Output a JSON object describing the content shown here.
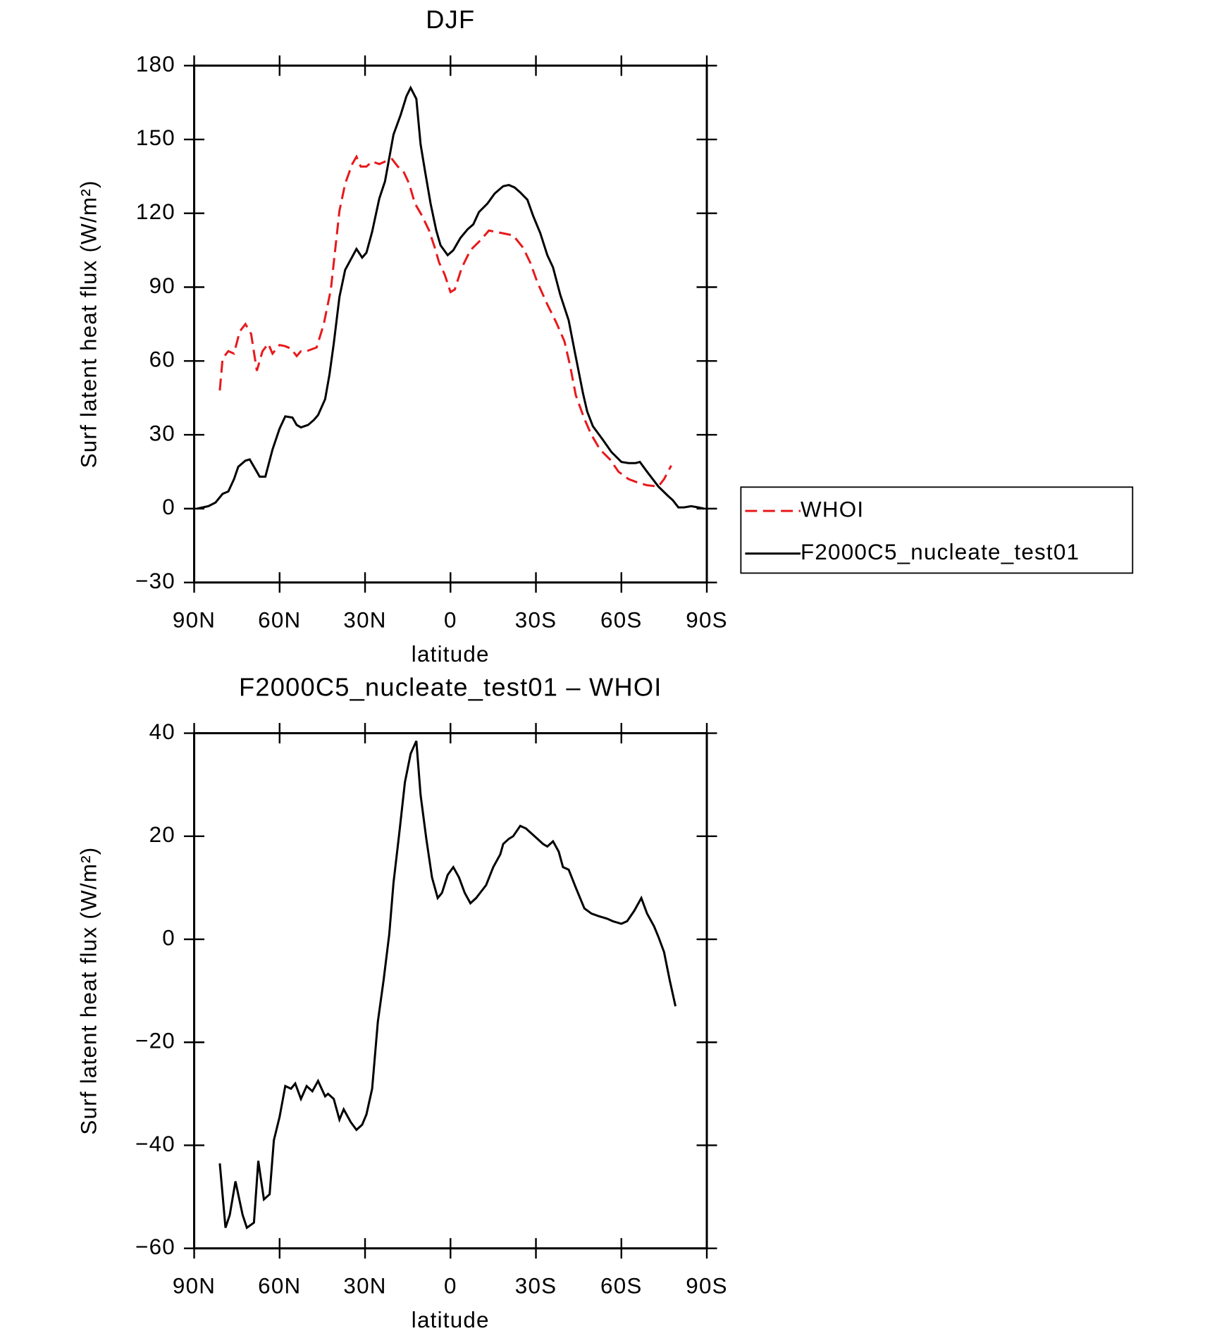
{
  "chart_data": [
    {
      "type": "line",
      "title": "DJF",
      "x_label": "latitude",
      "y_label": "Surf latent heat flux (W/m²)",
      "xlim": [
        90,
        -90
      ],
      "xticks": [
        {
          "value": 90,
          "label": "90N"
        },
        {
          "value": 60,
          "label": "60N"
        },
        {
          "value": 30,
          "label": "30N"
        },
        0,
        {
          "value": -30,
          "label": "30S"
        },
        {
          "value": -60,
          "label": "60S"
        },
        {
          "value": -90,
          "label": "90S"
        }
      ],
      "ylim": [
        -30,
        180
      ],
      "yticks": [
        {
          "value": -30,
          "label": "−30"
        },
        0,
        30,
        60,
        90,
        120,
        150,
        180
      ],
      "legend": "right",
      "series": [
        {
          "name": "WHOI",
          "color": "#e8191c",
          "dash": true,
          "x": [
            81,
            80,
            78,
            76,
            74,
            72,
            70,
            68,
            66,
            64,
            62.5,
            60,
            58,
            56,
            54,
            52.5,
            50.5,
            47,
            44.5,
            42,
            39,
            37,
            34.5,
            33,
            31.5,
            29.5,
            27.5,
            25,
            23,
            20.5,
            18.5,
            16.5,
            14.5,
            12.5,
            10,
            7.5,
            5.5,
            4,
            2,
            0,
            -1.5,
            -4,
            -7,
            -10.5,
            -13.5,
            -18,
            -22,
            -25.5,
            -28,
            -30.5,
            -34,
            -37,
            -40,
            -42,
            -44,
            -47,
            -49.5,
            -52.5,
            -56,
            -59,
            -62.5,
            -66,
            -69,
            -73,
            -75,
            -77.5
          ],
          "values": [
            48,
            61,
            64,
            63,
            72,
            75,
            71,
            56,
            64,
            67,
            63,
            66.5,
            66,
            65,
            62,
            64,
            64,
            65.5,
            75,
            89,
            121,
            132,
            140,
            143,
            139,
            139,
            141,
            140,
            141,
            142,
            139,
            137,
            132,
            124,
            119,
            113,
            106,
            100,
            95,
            88,
            89,
            98,
            105,
            109,
            113,
            112,
            111,
            106,
            100,
            92,
            83,
            76,
            68,
            58,
            46,
            36.5,
            30,
            24,
            20,
            15,
            12,
            10.5,
            9.5,
            9,
            12,
            17.5
          ]
        },
        {
          "name": "F2000C5_nucleate_test01",
          "color": "#000000",
          "dash": false,
          "x": [
            89,
            85,
            82.5,
            80,
            78,
            76,
            74.5,
            72,
            70.5,
            68.5,
            67,
            65,
            62.5,
            60,
            58,
            55.5,
            54,
            52.5,
            50,
            48,
            46.5,
            44,
            42.5,
            41,
            39,
            37,
            33,
            31,
            29.5,
            27.5,
            25,
            23,
            20,
            17.5,
            15.5,
            14,
            12,
            10.5,
            9,
            7,
            5,
            3.5,
            1,
            -1,
            -3.5,
            -6,
            -8,
            -10,
            -13,
            -15.5,
            -18.5,
            -20.5,
            -22.5,
            -24.5,
            -27,
            -29,
            -31.5,
            -34,
            -36,
            -38.5,
            -41.5,
            -43.5,
            -46.5,
            -48,
            -50,
            -53.5,
            -56.5,
            -60,
            -62.5,
            -65,
            -66.5,
            -69,
            -73,
            -76.5,
            -78,
            -80,
            -82,
            -84.5,
            -87,
            -89
          ],
          "values": [
            0,
            1,
            2.5,
            6,
            7,
            12,
            17,
            19.5,
            20,
            16,
            13,
            13,
            24,
            32.5,
            37.5,
            37,
            34,
            33,
            34,
            36,
            38,
            44.5,
            54.5,
            67,
            86,
            97,
            105.5,
            102,
            104,
            112.5,
            126,
            133,
            152,
            160,
            167.5,
            171,
            166.5,
            148,
            137.5,
            124,
            113,
            107,
            103,
            105,
            110,
            113.5,
            115.5,
            120.5,
            124,
            128,
            131,
            131.5,
            130.5,
            128.5,
            125.5,
            119,
            112,
            103,
            98,
            87,
            76.5,
            64.5,
            47,
            39.5,
            33.5,
            28,
            23,
            19,
            18.5,
            18.5,
            19,
            15,
            9,
            5,
            3.5,
            0.5,
            0.5,
            1,
            0.5,
            0
          ]
        }
      ]
    },
    {
      "type": "line",
      "title": "F2000C5_nucleate_test01 – WHOI",
      "x_label": "latitude",
      "y_label": "Surf latent heat flux (W/m²)",
      "xlim": [
        90,
        -90
      ],
      "xticks": [
        {
          "value": 90,
          "label": "90N"
        },
        {
          "value": 60,
          "label": "60N"
        },
        {
          "value": 30,
          "label": "30N"
        },
        0,
        {
          "value": -30,
          "label": "30S"
        },
        {
          "value": -60,
          "label": "60S"
        },
        {
          "value": -90,
          "label": "90S"
        }
      ],
      "ylim": [
        -60,
        40
      ],
      "yticks": [
        {
          "value": -60,
          "label": "−60"
        },
        {
          "value": -40,
          "label": "−40"
        },
        {
          "value": -20,
          "label": "−20"
        },
        0,
        20,
        40
      ],
      "series": [
        {
          "color": "#000000",
          "dash": false,
          "x": [
            81,
            79,
            77.5,
            75.5,
            73,
            71.5,
            69,
            67.5,
            65.5,
            63.5,
            62,
            60,
            58,
            56,
            54.5,
            52.5,
            50.5,
            48.5,
            46.5,
            44,
            43,
            41,
            39,
            37.5,
            35,
            33,
            31,
            29.5,
            27.5,
            25.5,
            23.5,
            21.5,
            20,
            18,
            16,
            14,
            12,
            10.5,
            8.5,
            6.5,
            4.5,
            3,
            1,
            -1,
            -3,
            -5,
            -7,
            -9,
            -12.5,
            -15,
            -17.5,
            -18.5,
            -20.5,
            -22,
            -24.5,
            -26.5,
            -28.5,
            -30.5,
            -32.5,
            -34,
            -36,
            -38,
            -39.5,
            -41.5,
            -44,
            -47,
            -49.5,
            -52,
            -55,
            -57,
            -60,
            -62,
            -64.5,
            -67,
            -69,
            -71.5,
            -73,
            -75,
            -77,
            -79
          ],
          "values": [
            -43.5,
            -56,
            -53.5,
            -47,
            -53.5,
            -56,
            -55,
            -43,
            -50.5,
            -49.5,
            -39,
            -34.5,
            -28.5,
            -29,
            -28,
            -31,
            -28.5,
            -29.5,
            -27.5,
            -30.5,
            -30,
            -31,
            -35,
            -33,
            -35.5,
            -37,
            -36,
            -34,
            -29,
            -16,
            -8,
            1,
            11,
            20.5,
            30.5,
            36,
            38.5,
            28,
            19.5,
            12,
            8,
            9,
            12.5,
            14,
            12,
            9,
            7,
            8,
            10.5,
            14,
            16.5,
            18.5,
            19.5,
            20,
            22,
            21.5,
            20.5,
            19.5,
            18.5,
            18,
            19,
            17,
            14,
            13.5,
            10,
            6,
            5,
            4.5,
            4,
            3.5,
            3,
            3.5,
            5.5,
            8,
            5,
            2.5,
            0.5,
            -2.5,
            -8,
            -13
          ]
        }
      ]
    }
  ]
}
